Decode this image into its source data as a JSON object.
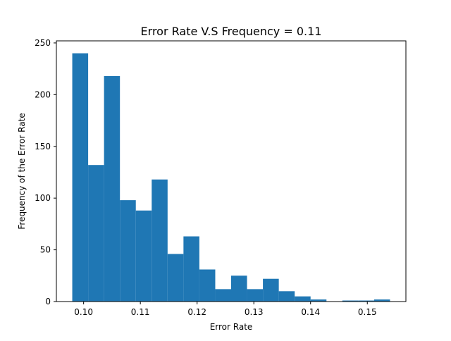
{
  "chart_data": {
    "type": "bar",
    "title": "Error Rate V.S Frequency = 0.11",
    "xlabel": "Error Rate",
    "ylabel": "Frequency of the Error Rate",
    "xlim": [
      0.0952,
      0.1568
    ],
    "ylim": [
      0,
      252
    ],
    "x_ticks": [
      0.1,
      0.11,
      0.12,
      0.13,
      0.14,
      0.15
    ],
    "x_tick_labels": [
      "0.10",
      "0.11",
      "0.12",
      "0.13",
      "0.14",
      "0.15"
    ],
    "y_ticks": [
      0,
      50,
      100,
      150,
      200,
      250
    ],
    "y_tick_labels": [
      "0",
      "50",
      "100",
      "150",
      "200",
      "250"
    ],
    "bin_edges": [
      0.098,
      0.1008,
      0.1036,
      0.1064,
      0.1092,
      0.112,
      0.1148,
      0.1176,
      0.1204,
      0.1232,
      0.126,
      0.1288,
      0.1316,
      0.1344,
      0.1372,
      0.14,
      0.1428,
      0.1456,
      0.1484,
      0.1512,
      0.154
    ],
    "values": [
      240,
      132,
      218,
      98,
      88,
      118,
      46,
      63,
      31,
      12,
      25,
      12,
      22,
      10,
      5,
      2,
      0,
      1,
      1,
      2
    ],
    "bar_color": "#1f77b4",
    "grid": false,
    "legend": "none"
  }
}
